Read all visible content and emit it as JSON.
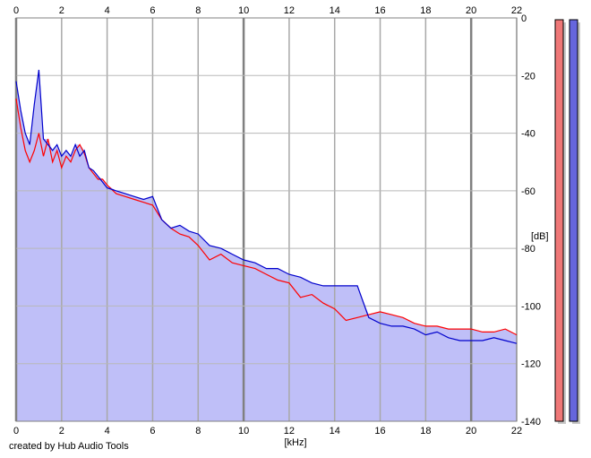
{
  "chart_data": {
    "type": "area",
    "xlabel": "[kHz]",
    "ylabel": "[dB]",
    "xlim": [
      0,
      22
    ],
    "ylim": [
      -140,
      0
    ],
    "x_ticks": [
      "0",
      "2",
      "4",
      "6",
      "8",
      "10",
      "12",
      "14",
      "16",
      "18",
      "20",
      "22"
    ],
    "y_ticks": [
      "0",
      "-20",
      "-40",
      "-60",
      "-80",
      "-100",
      "-120",
      "-140"
    ],
    "grid": true,
    "series": [
      {
        "color": "#ff0000",
        "x": [
          0,
          0.2,
          0.4,
          0.6,
          0.8,
          1.0,
          1.2,
          1.4,
          1.6,
          1.8,
          2.0,
          2.2,
          2.4,
          2.6,
          2.8,
          3.0,
          3.2,
          3.4,
          3.6,
          3.8,
          4.0,
          4.4,
          4.8,
          5.2,
          5.6,
          6.0,
          6.4,
          6.8,
          7.2,
          7.6,
          8.0,
          8.5,
          9.0,
          9.5,
          10.0,
          10.5,
          11.0,
          11.5,
          12.0,
          12.5,
          13.0,
          13.5,
          14.0,
          14.5,
          15.0,
          15.5,
          16.0,
          16.5,
          17.0,
          17.5,
          18.0,
          18.5,
          19.0,
          19.5,
          20.0,
          20.5,
          21.0,
          21.5,
          22.0
        ],
        "values": [
          -28,
          -38,
          -46,
          -50,
          -46,
          -40,
          -48,
          -42,
          -50,
          -46,
          -52,
          -48,
          -50,
          -46,
          -44,
          -47,
          -52,
          -54,
          -56,
          -56,
          -58,
          -61,
          -62,
          -63,
          -64,
          -65,
          -70,
          -73,
          -75,
          -76,
          -79,
          -84,
          -82,
          -85,
          -86,
          -87,
          -89,
          -91,
          -92,
          -97,
          -96,
          -99,
          -101,
          -105,
          -104,
          -103,
          -102,
          -103,
          -104,
          -106,
          -107,
          -107,
          -108,
          -108,
          -108,
          -109,
          -109,
          -108,
          -110
        ]
      },
      {
        "color": "#0000cc",
        "x": [
          0,
          0.2,
          0.4,
          0.6,
          0.8,
          1.0,
          1.2,
          1.4,
          1.6,
          1.8,
          2.0,
          2.2,
          2.4,
          2.6,
          2.8,
          3.0,
          3.2,
          3.4,
          3.6,
          3.8,
          4.0,
          4.4,
          4.8,
          5.2,
          5.6,
          6.0,
          6.4,
          6.8,
          7.2,
          7.6,
          8.0,
          8.5,
          9.0,
          9.5,
          10.0,
          10.5,
          11.0,
          11.5,
          12.0,
          12.5,
          13.0,
          13.5,
          14.0,
          14.5,
          15.0,
          15.5,
          16.0,
          16.5,
          17.0,
          17.5,
          18.0,
          18.5,
          19.0,
          19.5,
          20.0,
          20.5,
          21.0,
          21.5,
          22.0
        ],
        "values": [
          -22,
          -32,
          -40,
          -44,
          -30,
          -18,
          -42,
          -44,
          -46,
          -44,
          -48,
          -46,
          -48,
          -44,
          -48,
          -46,
          -52,
          -53,
          -55,
          -57,
          -59,
          -60,
          -61,
          -62,
          -63,
          -62,
          -70,
          -73,
          -72,
          -74,
          -75,
          -79,
          -80,
          -82,
          -84,
          -85,
          -87,
          -87,
          -89,
          -90,
          -92,
          -93,
          -93,
          -93,
          -93,
          -104,
          -106,
          -107,
          -107,
          -108,
          -110,
          -109,
          -111,
          -112,
          -112,
          -112,
          -111,
          -112,
          -113
        ]
      }
    ],
    "meters": [
      {
        "color": "#ee7777",
        "level": 1.0
      },
      {
        "color": "#6666dd",
        "level": 1.0
      }
    ],
    "fill_color": "#bfbff8"
  },
  "credit": "created by Hub Audio Tools"
}
